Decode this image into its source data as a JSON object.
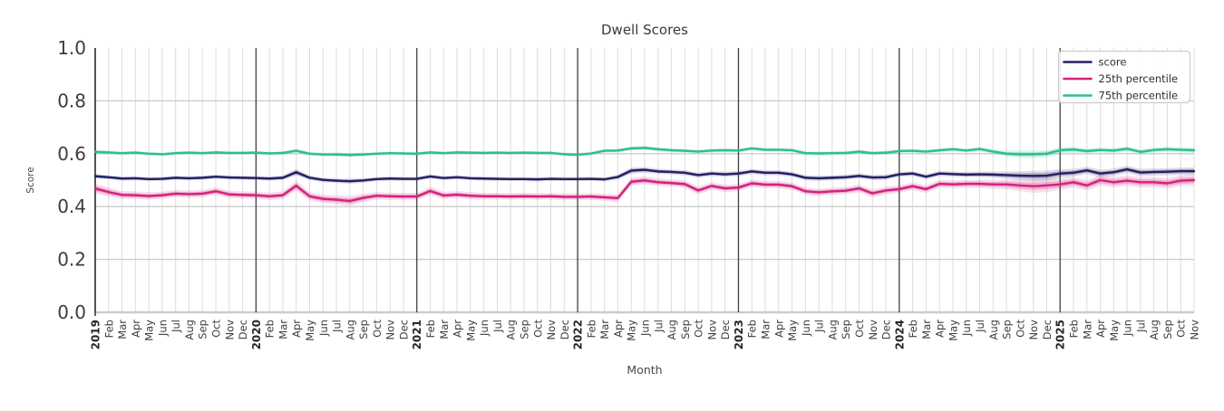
{
  "figure": {
    "title": "Dwell Scores",
    "xlabel": "Month",
    "ylabel": "Score"
  },
  "chart_data": {
    "type": "line",
    "title": "Dwell Scores",
    "xlabel": "Month",
    "ylabel": "Score",
    "ylim": [
      0.0,
      1.0
    ],
    "yticks": [
      0.0,
      0.2,
      0.4,
      0.6,
      0.8,
      1.0
    ],
    "grid": true,
    "legend_position": "upper right",
    "x": [
      "2019",
      "Feb",
      "Mar",
      "Apr",
      "May",
      "Jun",
      "Jul",
      "Aug",
      "Sep",
      "Oct",
      "Nov",
      "Dec",
      "2020",
      "Feb",
      "Mar",
      "Apr",
      "May",
      "Jun",
      "Jul",
      "Aug",
      "Sep",
      "Oct",
      "Nov",
      "Dec",
      "2021",
      "Feb",
      "Mar",
      "Apr",
      "May",
      "Jun",
      "Jul",
      "Aug",
      "Sep",
      "Oct",
      "Nov",
      "Dec",
      "2022",
      "Feb",
      "Mar",
      "Apr",
      "May",
      "Jun",
      "Jul",
      "Aug",
      "Sep",
      "Oct",
      "Nov",
      "Dec",
      "2023",
      "Feb",
      "Mar",
      "Apr",
      "May",
      "Jun",
      "Jul",
      "Aug",
      "Sep",
      "Oct",
      "Nov",
      "Dec",
      "2024",
      "Feb",
      "Mar",
      "Apr",
      "May",
      "Jun",
      "Jul",
      "Aug",
      "Sep",
      "Oct",
      "Nov",
      "Dec",
      "2025",
      "Feb",
      "Mar",
      "Apr",
      "May",
      "Jun",
      "Jul",
      "Aug",
      "Sep",
      "Oct",
      "Nov"
    ],
    "series": [
      {
        "name": "score",
        "color": "#232066",
        "values": [
          0.515,
          0.511,
          0.506,
          0.507,
          0.504,
          0.505,
          0.509,
          0.507,
          0.509,
          0.513,
          0.51,
          0.509,
          0.508,
          0.506,
          0.509,
          0.53,
          0.509,
          0.501,
          0.498,
          0.496,
          0.499,
          0.504,
          0.506,
          0.505,
          0.505,
          0.514,
          0.508,
          0.511,
          0.507,
          0.506,
          0.505,
          0.504,
          0.504,
          0.503,
          0.505,
          0.504,
          0.504,
          0.505,
          0.503,
          0.512,
          0.536,
          0.539,
          0.533,
          0.531,
          0.528,
          0.519,
          0.525,
          0.522,
          0.525,
          0.533,
          0.528,
          0.528,
          0.522,
          0.509,
          0.507,
          0.509,
          0.511,
          0.516,
          0.51,
          0.511,
          0.522,
          0.525,
          0.513,
          0.525,
          0.523,
          0.521,
          0.522,
          0.521,
          0.519,
          0.517,
          0.516,
          0.517,
          0.525,
          0.528,
          0.537,
          0.525,
          0.53,
          0.541,
          0.529,
          0.531,
          0.532,
          0.534,
          0.534
        ],
        "band_halfwidth": [
          0.009,
          0.008,
          0.008,
          0.008,
          0.008,
          0.008,
          0.008,
          0.008,
          0.008,
          0.008,
          0.008,
          0.008,
          0.008,
          0.008,
          0.009,
          0.013,
          0.009,
          0.009,
          0.009,
          0.01,
          0.009,
          0.008,
          0.008,
          0.008,
          0.008,
          0.009,
          0.008,
          0.008,
          0.008,
          0.008,
          0.008,
          0.008,
          0.008,
          0.008,
          0.008,
          0.008,
          0.008,
          0.008,
          0.008,
          0.01,
          0.012,
          0.011,
          0.01,
          0.01,
          0.01,
          0.01,
          0.01,
          0.01,
          0.01,
          0.01,
          0.01,
          0.01,
          0.01,
          0.01,
          0.01,
          0.01,
          0.01,
          0.01,
          0.01,
          0.01,
          0.01,
          0.01,
          0.01,
          0.01,
          0.01,
          0.01,
          0.011,
          0.012,
          0.014,
          0.017,
          0.02,
          0.02,
          0.017,
          0.015,
          0.014,
          0.015,
          0.014,
          0.014,
          0.014,
          0.014,
          0.014,
          0.014,
          0.015
        ]
      },
      {
        "name": "25th percentile",
        "color": "#d4217d",
        "values": [
          0.468,
          0.455,
          0.444,
          0.443,
          0.44,
          0.443,
          0.449,
          0.447,
          0.449,
          0.458,
          0.446,
          0.444,
          0.443,
          0.439,
          0.443,
          0.479,
          0.439,
          0.429,
          0.426,
          0.421,
          0.433,
          0.441,
          0.439,
          0.438,
          0.438,
          0.459,
          0.442,
          0.445,
          0.441,
          0.439,
          0.439,
          0.438,
          0.439,
          0.438,
          0.439,
          0.437,
          0.437,
          0.438,
          0.435,
          0.432,
          0.494,
          0.499,
          0.492,
          0.489,
          0.485,
          0.461,
          0.478,
          0.469,
          0.472,
          0.488,
          0.483,
          0.483,
          0.477,
          0.458,
          0.454,
          0.458,
          0.46,
          0.469,
          0.45,
          0.461,
          0.466,
          0.477,
          0.466,
          0.486,
          0.484,
          0.486,
          0.486,
          0.484,
          0.484,
          0.48,
          0.477,
          0.48,
          0.484,
          0.492,
          0.48,
          0.5,
          0.492,
          0.498,
          0.492,
          0.492,
          0.488,
          0.498,
          0.5
        ],
        "band_halfwidth": [
          0.02,
          0.017,
          0.015,
          0.015,
          0.014,
          0.014,
          0.014,
          0.014,
          0.014,
          0.015,
          0.014,
          0.014,
          0.014,
          0.014,
          0.015,
          0.019,
          0.016,
          0.016,
          0.017,
          0.019,
          0.016,
          0.014,
          0.014,
          0.014,
          0.014,
          0.016,
          0.014,
          0.014,
          0.014,
          0.013,
          0.013,
          0.013,
          0.013,
          0.013,
          0.013,
          0.013,
          0.013,
          0.013,
          0.013,
          0.015,
          0.016,
          0.015,
          0.014,
          0.014,
          0.014,
          0.015,
          0.014,
          0.014,
          0.014,
          0.014,
          0.014,
          0.014,
          0.014,
          0.014,
          0.014,
          0.014,
          0.014,
          0.015,
          0.015,
          0.015,
          0.015,
          0.015,
          0.015,
          0.015,
          0.015,
          0.015,
          0.016,
          0.017,
          0.019,
          0.022,
          0.025,
          0.025,
          0.022,
          0.02,
          0.02,
          0.021,
          0.02,
          0.02,
          0.02,
          0.02,
          0.02,
          0.021,
          0.022
        ]
      },
      {
        "name": "75th percentile",
        "color": "#2cbf8e",
        "values": [
          0.607,
          0.605,
          0.602,
          0.604,
          0.6,
          0.598,
          0.602,
          0.604,
          0.602,
          0.605,
          0.603,
          0.603,
          0.604,
          0.601,
          0.603,
          0.611,
          0.6,
          0.597,
          0.597,
          0.595,
          0.597,
          0.6,
          0.602,
          0.601,
          0.6,
          0.605,
          0.602,
          0.605,
          0.604,
          0.603,
          0.604,
          0.603,
          0.604,
          0.603,
          0.603,
          0.598,
          0.596,
          0.601,
          0.611,
          0.612,
          0.62,
          0.622,
          0.617,
          0.613,
          0.611,
          0.608,
          0.612,
          0.613,
          0.612,
          0.62,
          0.615,
          0.615,
          0.613,
          0.602,
          0.601,
          0.602,
          0.603,
          0.608,
          0.602,
          0.604,
          0.61,
          0.611,
          0.608,
          0.613,
          0.617,
          0.612,
          0.618,
          0.608,
          0.6,
          0.598,
          0.598,
          0.6,
          0.613,
          0.616,
          0.61,
          0.614,
          0.612,
          0.619,
          0.607,
          0.614,
          0.617,
          0.615,
          0.613
        ],
        "band_halfwidth": [
          0.008,
          0.007,
          0.007,
          0.007,
          0.007,
          0.007,
          0.007,
          0.007,
          0.007,
          0.007,
          0.007,
          0.007,
          0.007,
          0.007,
          0.007,
          0.009,
          0.008,
          0.008,
          0.008,
          0.008,
          0.008,
          0.007,
          0.007,
          0.007,
          0.007,
          0.007,
          0.007,
          0.007,
          0.007,
          0.007,
          0.007,
          0.007,
          0.007,
          0.007,
          0.007,
          0.007,
          0.007,
          0.007,
          0.008,
          0.008,
          0.008,
          0.008,
          0.008,
          0.008,
          0.008,
          0.008,
          0.008,
          0.008,
          0.008,
          0.008,
          0.008,
          0.008,
          0.008,
          0.008,
          0.008,
          0.008,
          0.008,
          0.008,
          0.008,
          0.008,
          0.008,
          0.008,
          0.008,
          0.008,
          0.008,
          0.008,
          0.009,
          0.01,
          0.012,
          0.014,
          0.015,
          0.014,
          0.012,
          0.011,
          0.01,
          0.01,
          0.01,
          0.01,
          0.01,
          0.01,
          0.01,
          0.01,
          0.011
        ]
      }
    ],
    "colors": {
      "grid_minor": "#dcdcdc",
      "grid_major_h": "#cccccc",
      "year_line": "#404040",
      "spine": "#2e2e2e",
      "legend_border": "#cccccc"
    }
  }
}
